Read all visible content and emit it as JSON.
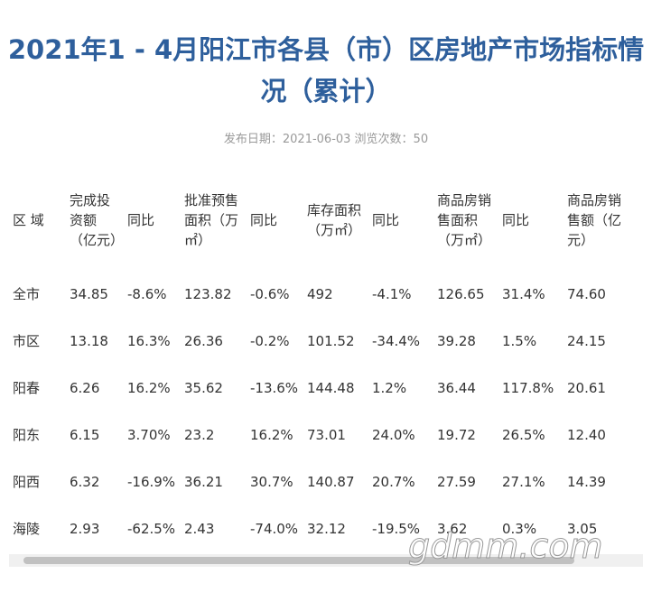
{
  "title": "2021年1 - 4月阳江市各县（市）区房地产市场指标情况（累计）",
  "meta": "发布日期：2021-06-03  浏览次数：50",
  "table": {
    "header": [
      "区 域",
      "完成投资额（亿元）",
      "同比",
      "批准预售面积（万㎡）",
      "同比",
      "库存面积（万㎡）",
      "同比",
      "商品房销售面积（万㎡）",
      "同比",
      "商品房销售额（亿元）"
    ],
    "rows": [
      [
        "全市",
        "34.85",
        "-8.6%",
        "123.82",
        "-0.6%",
        "492",
        "-4.1%",
        "126.65",
        "31.4%",
        "74.60"
      ],
      [
        "市区",
        "13.18",
        "16.3%",
        "26.36",
        "-0.2%",
        "101.52",
        "-34.4%",
        "39.28",
        "1.5%",
        "24.15"
      ],
      [
        "阳春",
        "6.26",
        "16.2%",
        "35.62",
        "-13.6%",
        "144.48",
        "1.2%",
        "36.44",
        "117.8%",
        "20.61"
      ],
      [
        "阳东",
        "6.15",
        "3.70%",
        "23.2",
        "16.2%",
        "73.01",
        "24.0%",
        "19.72",
        "26.5%",
        "12.40"
      ],
      [
        "阳西",
        "6.32",
        "-16.9%",
        "36.21",
        "30.7%",
        "140.87",
        "20.7%",
        "27.59",
        "27.1%",
        "14.39"
      ],
      [
        "海陵",
        "2.93",
        "-62.5%",
        "2.43",
        "-74.0%",
        "32.12",
        "-19.5%",
        "3.62",
        "0.3%",
        "3.05"
      ]
    ]
  },
  "watermark": "gdmm.com"
}
